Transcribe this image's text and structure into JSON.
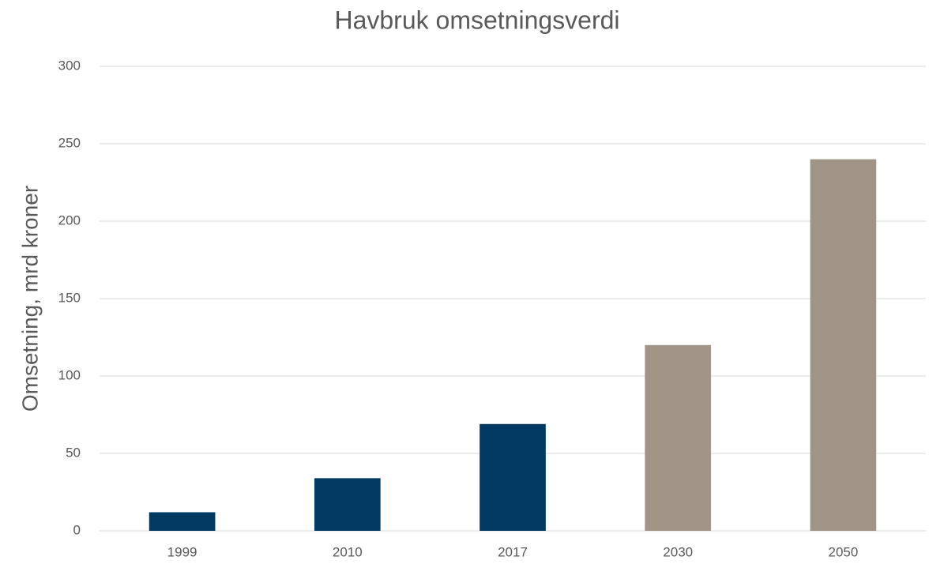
{
  "chart_data": {
    "type": "bar",
    "title": "Havbruk omsetningsverdi",
    "y_label": "Omsetning, mrd kroner",
    "categories": [
      "1999",
      "2010",
      "2017",
      "2030",
      "2050"
    ],
    "values": [
      12,
      34,
      69,
      120,
      240
    ],
    "colors": [
      "#003a63",
      "#003a63",
      "#003a63",
      "#a09486",
      "#a09486"
    ],
    "ylim": [
      0,
      300
    ],
    "yticks": [
      0,
      50,
      100,
      150,
      200,
      250,
      300
    ],
    "grid": true
  }
}
